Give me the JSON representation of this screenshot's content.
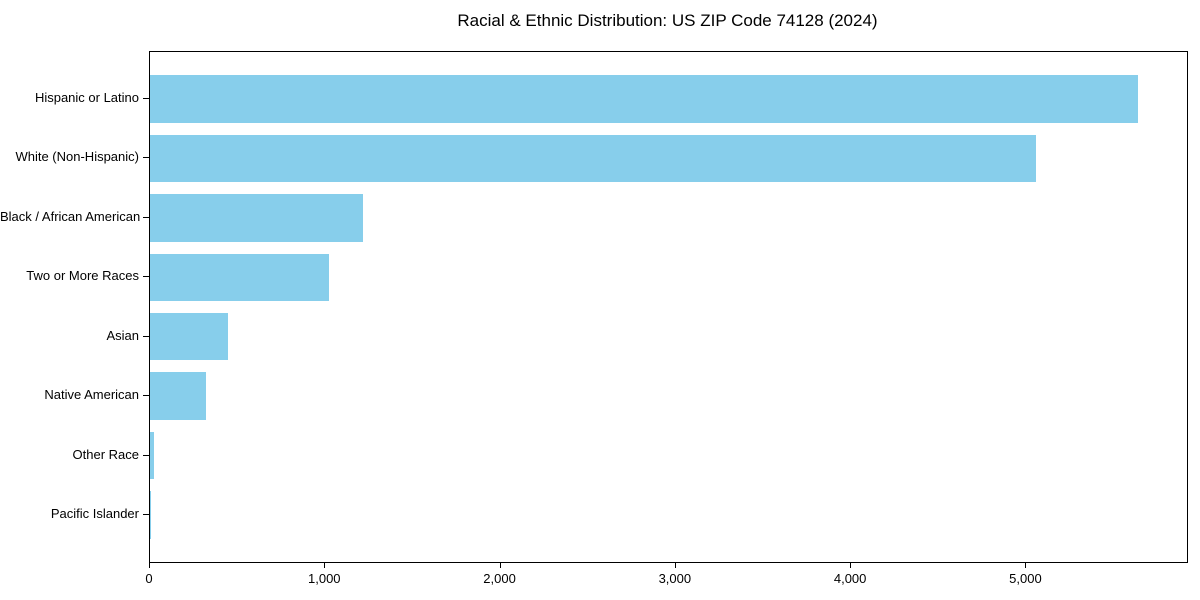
{
  "chart_data": {
    "type": "bar",
    "orientation": "horizontal",
    "title": "Racial & Ethnic Distribution: US ZIP Code 74128 (2024)",
    "categories": [
      "Hispanic or Latino",
      "White (Non-Hispanic)",
      "Black / African American",
      "Two or More Races",
      "Asian",
      "Native American",
      "Other Race",
      "Pacific Islander"
    ],
    "values": [
      5634,
      5057,
      1216,
      1022,
      445,
      320,
      22,
      3
    ],
    "xlabel": "",
    "ylabel": "",
    "xlim": [
      0,
      5916
    ],
    "xticks": [
      0,
      1000,
      2000,
      3000,
      4000,
      5000
    ],
    "xtick_labels": [
      "0",
      "1,000",
      "2,000",
      "3,000",
      "4,000",
      "5,000"
    ],
    "bar_color": "#87CEEB",
    "axis_color": "#000000",
    "text_color": "#000000",
    "background_color": "#ffffff",
    "grid": false,
    "legend": false
  }
}
